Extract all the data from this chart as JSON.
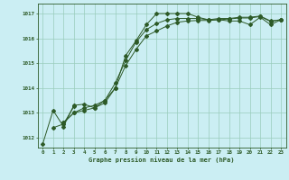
{
  "background_color": "#cbeef3",
  "grid_color": "#99ccbb",
  "line_color": "#2d5a27",
  "title": "Graphe pression niveau de la mer (hPa)",
  "xlim": [
    -0.5,
    23.5
  ],
  "ylim": [
    1011.6,
    1017.4
  ],
  "yticks": [
    1012,
    1013,
    1014,
    1015,
    1016,
    1017
  ],
  "xticks": [
    0,
    1,
    2,
    3,
    4,
    5,
    6,
    7,
    8,
    9,
    10,
    11,
    12,
    13,
    14,
    15,
    16,
    17,
    18,
    19,
    20,
    21,
    22,
    23
  ],
  "series": [
    {
      "x": [
        0,
        1,
        2,
        3,
        4,
        5,
        6,
        7,
        8,
        9,
        10,
        11,
        12,
        13,
        14,
        15,
        16,
        17,
        18,
        19,
        20,
        21,
        22,
        23
      ],
      "y": [
        1011.75,
        1013.1,
        1012.45,
        1013.3,
        1013.35,
        1013.2,
        1013.5,
        1014.0,
        1015.3,
        1015.9,
        1016.55,
        1017.0,
        1017.0,
        1017.0,
        1017.0,
        1016.85,
        1016.75,
        1016.75,
        1016.7,
        1016.7,
        1016.55,
        1016.85,
        1016.55,
        1016.75
      ]
    },
    {
      "x": [
        1,
        2,
        3
      ],
      "y": [
        1012.4,
        1012.55,
        1013.25
      ]
    },
    {
      "x": [
        2,
        3,
        4,
        5,
        6,
        7,
        8,
        9,
        10,
        11,
        12,
        13,
        14,
        15,
        16,
        17,
        18,
        19,
        20,
        21,
        22,
        23
      ],
      "y": [
        1012.6,
        1013.0,
        1013.2,
        1013.3,
        1013.5,
        1014.2,
        1015.1,
        1015.85,
        1016.35,
        1016.6,
        1016.75,
        1016.8,
        1016.8,
        1016.8,
        1016.75,
        1016.8,
        1016.8,
        1016.85,
        1016.85,
        1016.9,
        1016.7,
        1016.75
      ]
    },
    {
      "x": [
        2,
        3,
        4,
        5,
        6,
        7,
        8,
        9,
        10,
        11,
        12,
        13,
        14,
        15,
        16,
        17,
        18,
        19,
        20,
        21,
        22,
        23
      ],
      "y": [
        1012.6,
        1013.0,
        1013.1,
        1013.2,
        1013.4,
        1014.0,
        1014.9,
        1015.55,
        1016.1,
        1016.3,
        1016.5,
        1016.65,
        1016.7,
        1016.72,
        1016.72,
        1016.75,
        1016.78,
        1016.82,
        1016.82,
        1016.88,
        1016.68,
        1016.75
      ]
    }
  ]
}
